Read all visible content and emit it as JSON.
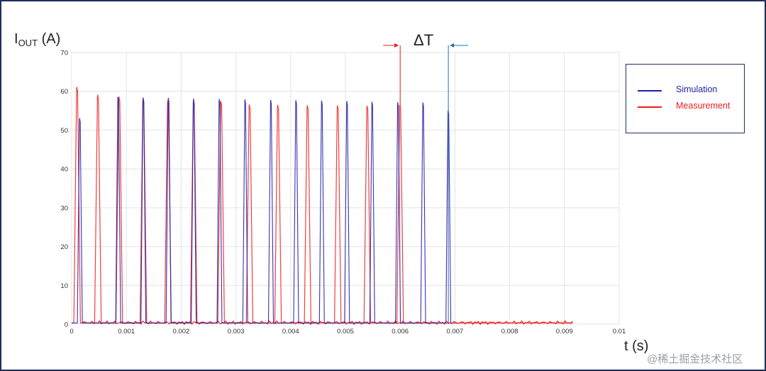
{
  "chart_data": {
    "type": "line",
    "ylabel": {
      "main": "I",
      "sub": "OUT",
      "unit": " (A)"
    },
    "xlabel": "t (s)",
    "xlim": [
      0,
      0.01
    ],
    "ylim": [
      0,
      70
    ],
    "xticks": [
      0,
      0.001,
      0.002,
      0.003,
      0.004,
      0.005,
      0.006,
      0.007,
      0.008,
      0.009,
      0.01
    ],
    "xtick_labels": [
      "0",
      "0.001",
      "0.002",
      "0.003",
      "0.004",
      "0.005",
      "0.006",
      "0.007",
      "0.008",
      "0.009",
      "0.01"
    ],
    "yticks": [
      0,
      10,
      20,
      30,
      40,
      50,
      60,
      70
    ],
    "ytick_labels": [
      "0",
      "10",
      "20",
      "30",
      "40",
      "50",
      "60",
      "70"
    ],
    "grid": true,
    "legend_position": "right",
    "series": [
      {
        "name": "Simulation",
        "color": "#1f1fa8",
        "peaks": [
          {
            "t": 0.00015,
            "i": 53.0
          },
          {
            "t": 0.00085,
            "i": 58.5
          },
          {
            "t": 0.00131,
            "i": 58.3
          },
          {
            "t": 0.00177,
            "i": 58.2
          },
          {
            "t": 0.00223,
            "i": 58.0
          },
          {
            "t": 0.0027,
            "i": 57.9
          },
          {
            "t": 0.00317,
            "i": 57.8
          },
          {
            "t": 0.00364,
            "i": 57.7
          },
          {
            "t": 0.0041,
            "i": 57.6
          },
          {
            "t": 0.00457,
            "i": 57.5
          },
          {
            "t": 0.00503,
            "i": 57.4
          },
          {
            "t": 0.00549,
            "i": 57.2
          },
          {
            "t": 0.00596,
            "i": 57.1
          },
          {
            "t": 0.00642,
            "i": 57.0
          },
          {
            "t": 0.00688,
            "i": 55.0
          }
        ]
      },
      {
        "name": "Measurement",
        "color": "#ee1c1c",
        "peaks": [
          {
            "t": 0.0001,
            "i": 61.0
          },
          {
            "t": 0.00048,
            "i": 59.0
          },
          {
            "t": 0.00087,
            "i": 58.5
          },
          {
            "t": 0.00131,
            "i": 58.0
          },
          {
            "t": 0.00176,
            "i": 57.5
          },
          {
            "t": 0.00223,
            "i": 57.4
          },
          {
            "t": 0.00273,
            "i": 57.4
          },
          {
            "t": 0.00325,
            "i": 56.5
          },
          {
            "t": 0.00377,
            "i": 56.4
          },
          {
            "t": 0.00431,
            "i": 56.3
          },
          {
            "t": 0.00486,
            "i": 56.3
          },
          {
            "t": 0.0054,
            "i": 56.2
          },
          {
            "t": 0.006,
            "i": 56.4
          }
        ],
        "end_t": 0.00915
      }
    ],
    "annotations": [
      {
        "text": "ΔT",
        "from_t": 0.006,
        "to_t": 0.00688,
        "left_arrow_color": "#ee1c1c",
        "right_arrow_color": "#1f6fb5"
      }
    ]
  },
  "watermark": "@稀土掘金技术社区"
}
